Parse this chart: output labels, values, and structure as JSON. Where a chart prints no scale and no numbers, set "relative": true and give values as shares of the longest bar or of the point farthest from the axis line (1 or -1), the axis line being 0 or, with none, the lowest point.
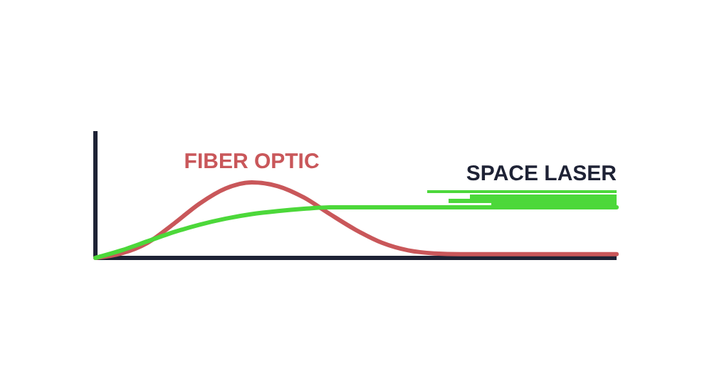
{
  "chart_data": {
    "type": "line",
    "relative": true,
    "categories": [
      null,
      null,
      null,
      null,
      null,
      null,
      null,
      null,
      null,
      null,
      null,
      null,
      null,
      null,
      null,
      null,
      null,
      null,
      null,
      null,
      null
    ],
    "series": [
      {
        "name": "FIBER OPTIC",
        "color": "#c9575a",
        "values": [
          0,
          0.06,
          0.2,
          0.45,
          0.72,
          0.92,
          1,
          0.95,
          0.8,
          0.58,
          0.37,
          0.2,
          0.1,
          0.06,
          0.05,
          0.05,
          0.05,
          0.05,
          0.05,
          0.05,
          0.05
        ]
      },
      {
        "name": "SPACE LASER",
        "color": "#4cd83a",
        "values": [
          0,
          0.1,
          0.22,
          0.34,
          0.44,
          0.52,
          0.58,
          0.62,
          0.65,
          0.67,
          0.67,
          0.67,
          0.67,
          0.67,
          0.67,
          0.67,
          0.67,
          0.67,
          0.67,
          0.67,
          0.67
        ]
      }
    ]
  }
}
